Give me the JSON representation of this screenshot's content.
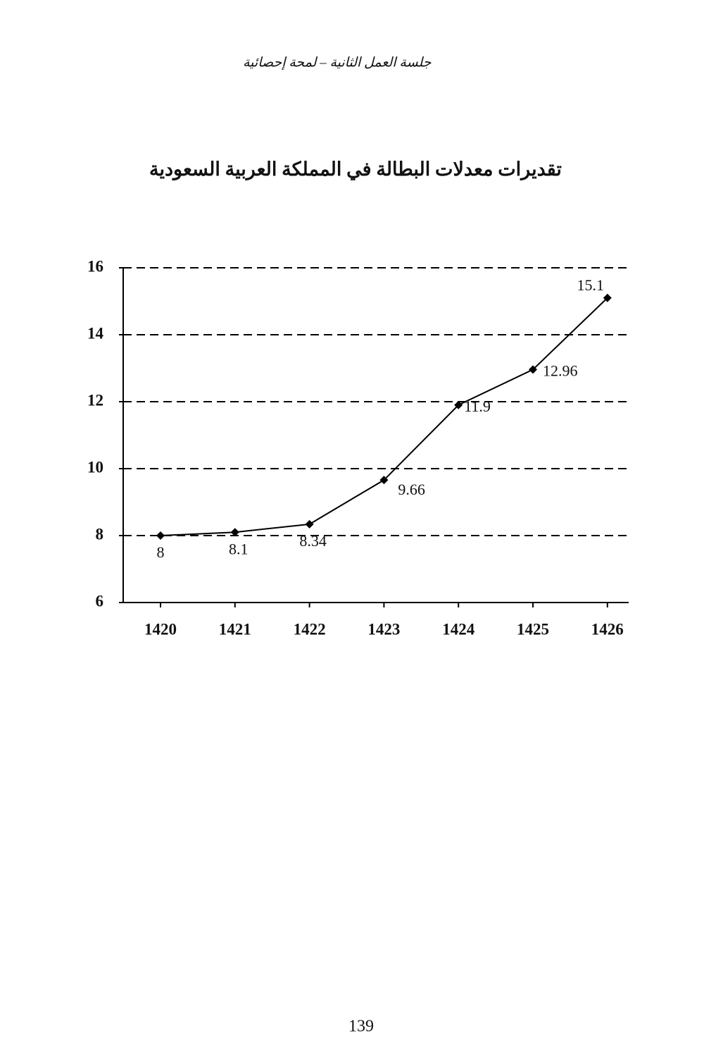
{
  "header": "جلسة العمل الثانية – لمحة إحصائية",
  "page_number": "139",
  "chart_data": {
    "type": "line",
    "title": "تقديرات معدلات البطالة في المملكة العربية السعودية",
    "categories": [
      "1420",
      "1421",
      "1422",
      "1423",
      "1424",
      "1425",
      "1426"
    ],
    "values": [
      8,
      8.1,
      8.34,
      9.66,
      11.9,
      12.96,
      15.1
    ],
    "color": "#000000",
    "ylim": [
      6,
      16
    ],
    "yticks": [
      6,
      8,
      10,
      12,
      14,
      16
    ],
    "grid": true
  }
}
